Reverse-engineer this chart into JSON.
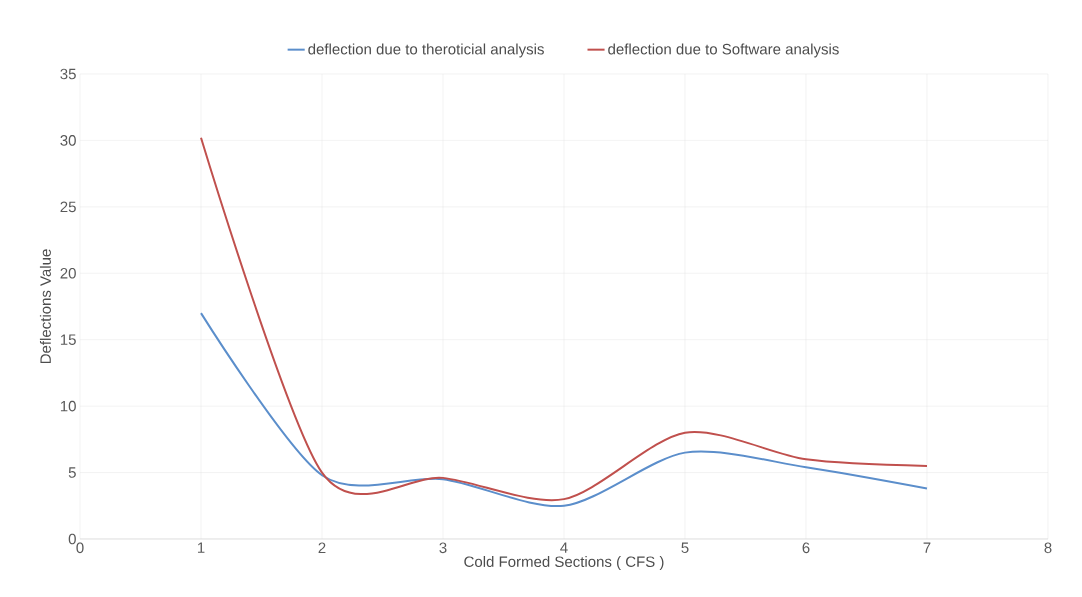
{
  "chart_data": {
    "type": "line",
    "xlabel": "Cold Formed Sections ( CFS )",
    "ylabel": "Deflections Value",
    "x": [
      1,
      2,
      3,
      4,
      5,
      6,
      7
    ],
    "series": [
      {
        "name": "deflection due to theroticial analysis",
        "color": "#5b8ecb",
        "values": [
          17,
          4.8,
          4.5,
          2.5,
          6.5,
          5.4,
          3.8
        ]
      },
      {
        "name": "deflection due to Software analysis",
        "color": "#c0504d",
        "values": [
          30.2,
          5,
          4.6,
          3,
          8,
          6,
          5.5
        ]
      }
    ],
    "xlim": [
      0,
      8
    ],
    "xticks": [
      0,
      1,
      2,
      3,
      4,
      5,
      6,
      7,
      8
    ],
    "ylim": [
      0,
      35
    ],
    "yticks": [
      0,
      5,
      10,
      15,
      20,
      25,
      30,
      35
    ],
    "grid": true,
    "legend": "top",
    "marker": "none",
    "line_style": "solid"
  }
}
